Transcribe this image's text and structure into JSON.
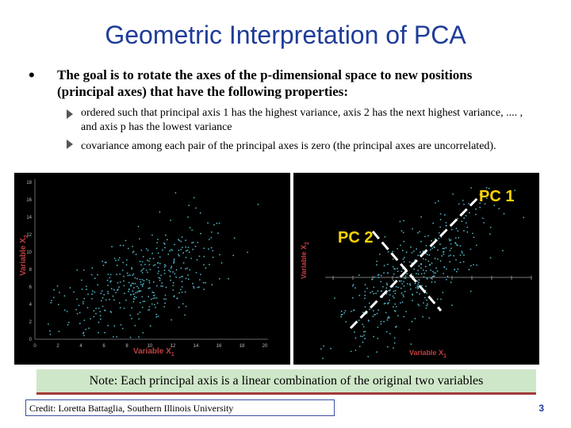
{
  "title": "Geometric Interpretation of PCA",
  "main_text": "The goal is to rotate the axes of the p-dimensional space to new positions (principal axes) that have the following properties:",
  "properties": [
    "ordered such that principal axis 1 has the highest variance, axis 2 has the next highest variance, .... , and axis p has the lowest variance",
    "covariance among each pair of the principal axes is zero (the principal axes are uncorrelated)."
  ],
  "left_plot": {
    "xlabel": "Variable X",
    "xlabel_sub": "1",
    "ylabel": "Variable X",
    "ylabel_sub": "2",
    "x_ticks": [
      "0",
      "2",
      "4",
      "6",
      "8",
      "10",
      "12",
      "14",
      "16",
      "18",
      "20"
    ],
    "y_ticks": [
      "0",
      "2",
      "4",
      "6",
      "8",
      "10",
      "12",
      "14",
      "16",
      "18"
    ]
  },
  "right_plot": {
    "xlabel": "Variable X",
    "xlabel_sub": "1",
    "ylabel": "Variable X",
    "ylabel_sub": "2",
    "pc1_label": "PC 1",
    "pc2_label": "PC 2"
  },
  "note": "Note: Each principal axis is a linear combination of the original two variables",
  "credit": "Credit: Loretta Battaglia, Southern Illinois University",
  "page_number": "3",
  "colors": {
    "title": "#1f3c99",
    "points": "#4fb3c4",
    "label": "#c04040",
    "pc_label": "#ffd400",
    "note_bg": "#cfe7c9"
  }
}
